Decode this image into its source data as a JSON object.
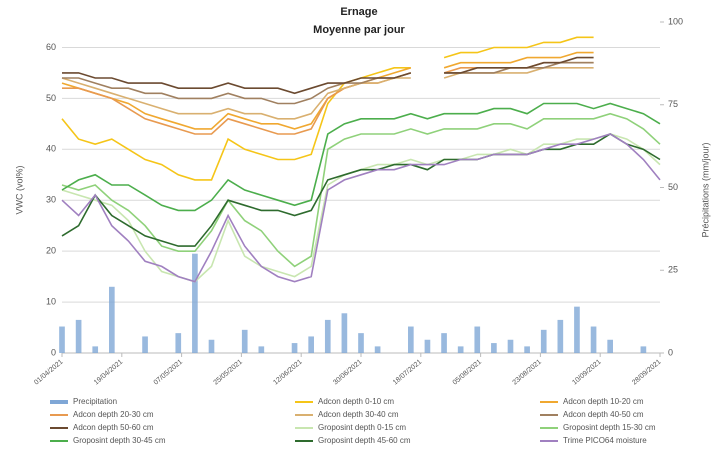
{
  "chart_data": {
    "type": "line",
    "title": "Ernage",
    "subtitle": "Moyenne par jour",
    "y_label": "VWC (vol%)",
    "y2_label": "Précipitations (mm/jour)",
    "x": [
      0,
      5,
      10,
      15,
      20,
      25,
      30,
      35,
      40,
      45,
      50,
      55,
      60,
      65,
      70,
      75,
      80,
      85,
      90,
      95,
      100,
      105,
      110,
      115,
      120,
      125,
      130,
      135,
      140,
      145,
      150,
      155,
      160,
      165,
      170,
      175,
      180
    ],
    "xlim": [
      0,
      180
    ],
    "xticks": [
      {
        "value": 0,
        "label": "01/04/2021"
      },
      {
        "value": 18,
        "label": "19/04/2021"
      },
      {
        "value": 36,
        "label": "07/05/2021"
      },
      {
        "value": 54,
        "label": "25/05/2021"
      },
      {
        "value": 72,
        "label": "12/06/2021"
      },
      {
        "value": 90,
        "label": "30/06/2021"
      },
      {
        "value": 108,
        "label": "18/07/2021"
      },
      {
        "value": 126,
        "label": "05/08/2021"
      },
      {
        "value": 144,
        "label": "23/08/2021"
      },
      {
        "value": 162,
        "label": "10/09/2021"
      },
      {
        "value": 180,
        "label": "28/09/2021"
      }
    ],
    "ylim": [
      0,
      65
    ],
    "yticks": [
      0,
      10,
      20,
      30,
      40,
      50,
      60
    ],
    "y2lim": [
      0,
      100
    ],
    "y2ticks": [
      0,
      25,
      50,
      75,
      100
    ],
    "grid": true,
    "series": [
      {
        "name": "Precipitation",
        "color": "#7fa7d6",
        "axis": "y2",
        "type": "bar",
        "values": [
          8,
          10,
          2,
          20,
          0,
          5,
          0,
          6,
          30,
          4,
          0,
          7,
          2,
          0,
          3,
          5,
          10,
          12,
          6,
          2,
          0,
          8,
          4,
          6,
          2,
          8,
          3,
          4,
          2,
          7,
          10,
          14,
          8,
          4,
          0,
          2,
          0
        ]
      },
      {
        "name": "Adcon depth 0-10 cm",
        "color": "#f5c518",
        "values": [
          46,
          42,
          41,
          42,
          40,
          38,
          37,
          35,
          34,
          34,
          42,
          40,
          39,
          38,
          38,
          39,
          49,
          53,
          54,
          55,
          56,
          56,
          null,
          58,
          59,
          59,
          60,
          60,
          60,
          61,
          61,
          62,
          62,
          null,
          61,
          null,
          60
        ]
      },
      {
        "name": "Adcon depth 10-20 cm",
        "color": "#f0a830",
        "values": [
          53,
          52,
          51,
          50,
          49,
          47,
          46,
          45,
          44,
          44,
          47,
          46,
          45,
          45,
          44,
          45,
          50,
          52,
          53,
          54,
          55,
          56,
          null,
          56,
          57,
          57,
          57,
          57,
          58,
          58,
          58,
          59,
          59,
          null,
          58,
          null,
          58
        ]
      },
      {
        "name": "Adcon depth 20-30 cm",
        "color": "#e89a50",
        "values": [
          52,
          52,
          51,
          50,
          48,
          46,
          45,
          44,
          43,
          43,
          46,
          45,
          44,
          43,
          43,
          44,
          50,
          52,
          53,
          53,
          54,
          55,
          null,
          55,
          56,
          56,
          56,
          56,
          56,
          57,
          57,
          57,
          57,
          null,
          57,
          null,
          57
        ]
      },
      {
        "name": "Adcon depth 30-40 cm",
        "color": "#d9b070",
        "values": [
          54,
          53,
          52,
          51,
          50,
          49,
          48,
          47,
          47,
          47,
          48,
          47,
          47,
          46,
          46,
          47,
          51,
          52,
          53,
          53,
          54,
          54,
          null,
          54,
          55,
          55,
          55,
          55,
          55,
          56,
          56,
          56,
          56,
          null,
          56,
          null,
          56
        ]
      },
      {
        "name": "Adcon depth 40-50 cm",
        "color": "#a08060",
        "values": [
          54,
          54,
          53,
          52,
          52,
          51,
          51,
          50,
          50,
          50,
          51,
          50,
          50,
          49,
          49,
          50,
          52,
          53,
          53,
          54,
          54,
          55,
          null,
          55,
          55,
          55,
          55,
          56,
          56,
          56,
          57,
          57,
          57,
          null,
          57,
          null,
          57
        ]
      },
      {
        "name": "Adcon depth 50-60 cm",
        "color": "#6b4a30",
        "values": [
          55,
          55,
          54,
          54,
          53,
          53,
          53,
          52,
          52,
          52,
          53,
          52,
          52,
          52,
          51,
          52,
          53,
          53,
          54,
          54,
          54,
          55,
          null,
          55,
          55,
          56,
          56,
          56,
          56,
          57,
          57,
          58,
          58,
          null,
          58,
          null,
          58
        ]
      },
      {
        "name": "Groposint depth 0-15 cm",
        "color": "#c8e6b0",
        "values": [
          32,
          31,
          30,
          29,
          26,
          20,
          16,
          15,
          14,
          17,
          26,
          19,
          17,
          16,
          15,
          17,
          33,
          35,
          36,
          37,
          37,
          38,
          37,
          38,
          38,
          39,
          39,
          40,
          39,
          41,
          41,
          42,
          42,
          43,
          42,
          40,
          37
        ]
      },
      {
        "name": "Groposint depth 15-30 cm",
        "color": "#8fd17a",
        "values": [
          33,
          32,
          33,
          30,
          28,
          25,
          21,
          20,
          20,
          24,
          30,
          26,
          24,
          20,
          17,
          19,
          40,
          42,
          43,
          43,
          43,
          44,
          43,
          44,
          44,
          44,
          45,
          45,
          44,
          46,
          46,
          46,
          46,
          47,
          46,
          44,
          41
        ]
      },
      {
        "name": "Groposint depth 30-45 cm",
        "color": "#4cae4c",
        "values": [
          32,
          34,
          35,
          33,
          33,
          31,
          29,
          28,
          28,
          30,
          34,
          32,
          31,
          30,
          29,
          30,
          43,
          45,
          46,
          46,
          46,
          47,
          46,
          47,
          47,
          47,
          48,
          48,
          47,
          49,
          49,
          49,
          48,
          49,
          48,
          47,
          45
        ]
      },
      {
        "name": "Groposint depth 45-60 cm",
        "color": "#2e6b2e",
        "values": [
          23,
          25,
          31,
          27,
          25,
          23,
          22,
          21,
          21,
          25,
          30,
          29,
          28,
          28,
          27,
          28,
          34,
          35,
          36,
          36,
          37,
          37,
          36,
          38,
          38,
          38,
          39,
          39,
          39,
          40,
          40,
          41,
          41,
          43,
          41,
          40,
          38
        ]
      },
      {
        "name": "Trime PICO64 moisture",
        "color": "#a080c0",
        "values": [
          30,
          27,
          31,
          25,
          22,
          18,
          17,
          15,
          14,
          20,
          27,
          21,
          17,
          15,
          14,
          15,
          32,
          34,
          35,
          36,
          36,
          37,
          37,
          37,
          38,
          38,
          39,
          39,
          39,
          40,
          41,
          41,
          42,
          43,
          41,
          38,
          34
        ]
      }
    ]
  }
}
